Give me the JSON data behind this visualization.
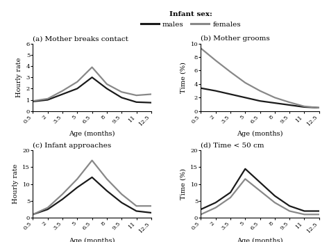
{
  "x_ticks": [
    0.5,
    2,
    3.5,
    5,
    6.5,
    8,
    9.5,
    11,
    12.5
  ],
  "panels": [
    {
      "title": "(a) Mother breaks contact",
      "ylabel": "Hourly rate",
      "xlabel": "Age (months)",
      "ylim": [
        0,
        6
      ],
      "yticks": [
        0,
        1,
        2,
        3,
        4,
        5,
        6
      ],
      "males_y": [
        0.85,
        1.0,
        1.5,
        2.0,
        3.0,
        2.0,
        1.2,
        0.8,
        0.75
      ],
      "females_y": [
        0.9,
        1.1,
        1.8,
        2.6,
        3.9,
        2.4,
        1.7,
        1.4,
        1.5
      ]
    },
    {
      "title": "(b) Mother grooms",
      "ylabel": "Time (%)",
      "xlabel": "Age (months)",
      "ylim": [
        0,
        10
      ],
      "yticks": [
        0,
        2,
        4,
        6,
        8,
        10
      ],
      "males_y": [
        3.4,
        3.0,
        2.5,
        2.0,
        1.5,
        1.2,
        0.9,
        0.6,
        0.5
      ],
      "females_y": [
        9.3,
        7.5,
        5.8,
        4.2,
        3.0,
        2.0,
        1.3,
        0.7,
        0.5
      ]
    },
    {
      "title": "(c) Infant approaches",
      "ylabel": "Hourly rate",
      "xlabel": "Age (months)",
      "ylim": [
        0,
        20
      ],
      "yticks": [
        0,
        5,
        10,
        15,
        20
      ],
      "males_y": [
        1.0,
        2.5,
        5.5,
        9.0,
        12.0,
        8.0,
        4.5,
        2.0,
        1.5
      ],
      "females_y": [
        1.0,
        3.0,
        7.0,
        11.5,
        17.0,
        11.5,
        7.0,
        3.5,
        3.5
      ]
    },
    {
      "title": "(d) Time < 50 cm",
      "ylabel": "Time (%)",
      "xlabel": "Age (months)",
      "ylim": [
        0,
        20
      ],
      "yticks": [
        0,
        5,
        10,
        15,
        20
      ],
      "males_y": [
        2.5,
        4.5,
        7.5,
        14.5,
        10.5,
        6.5,
        3.5,
        2.0,
        2.0
      ],
      "females_y": [
        1.0,
        3.0,
        6.0,
        11.5,
        8.0,
        4.5,
        2.0,
        1.0,
        1.0
      ]
    }
  ],
  "male_color": "#1a1a1a",
  "female_color": "#888888",
  "line_width": 1.6,
  "legend_label_males": "males",
  "legend_label_females": "females",
  "legend_prefix": "Infant sex:",
  "bg_color": "#ffffff",
  "font_family": "serif",
  "title_fontsize": 7.5,
  "label_fontsize": 7.0,
  "tick_fontsize": 6.0,
  "legend_fontsize": 7.5
}
